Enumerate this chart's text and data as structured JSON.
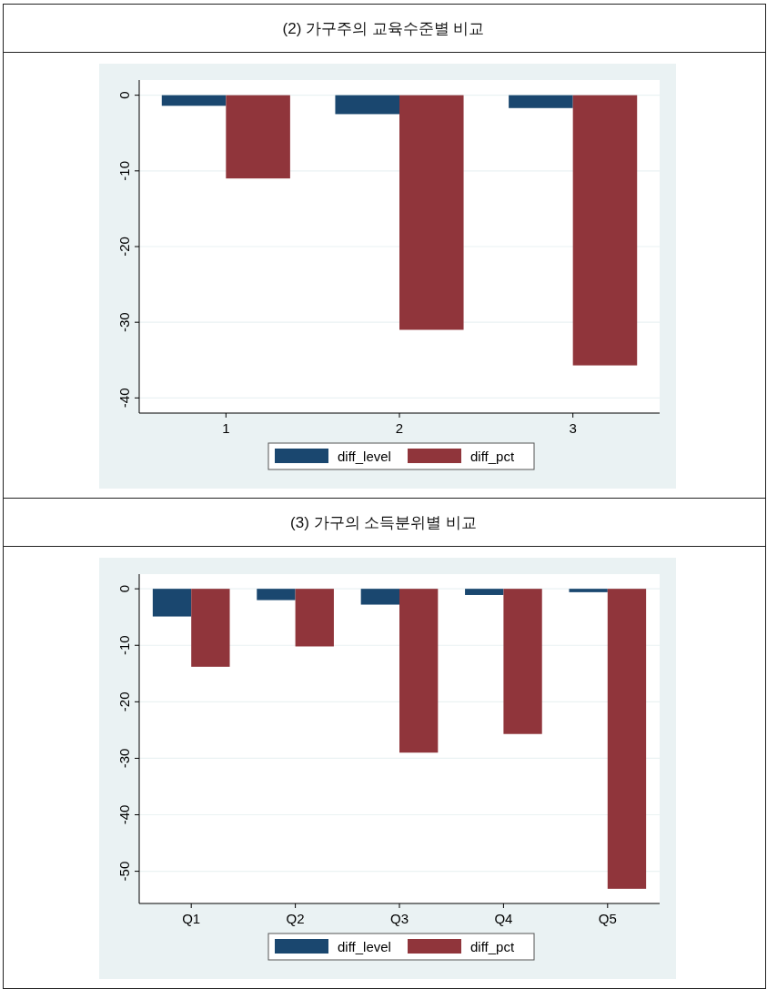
{
  "chart_data": [
    {
      "type": "bar",
      "title": "(2) 가구주의 교육수준별 비교",
      "categories": [
        "1",
        "2",
        "3"
      ],
      "series": [
        {
          "name": "diff_level",
          "color": "#1a476f",
          "values": [
            -1.4,
            -2.5,
            -1.7
          ]
        },
        {
          "name": "diff_pct",
          "color": "#90353b",
          "values": [
            -11.0,
            -31.0,
            -35.7
          ]
        }
      ],
      "ylim": [
        -42,
        2
      ],
      "yticks": [
        0,
        -10,
        -20,
        -30,
        -40
      ],
      "grid": "y",
      "legend": "bottom"
    },
    {
      "type": "bar",
      "title": "(3) 가구의 소득분위별 비교",
      "categories": [
        "Q1",
        "Q2",
        "Q3",
        "Q4",
        "Q5"
      ],
      "series": [
        {
          "name": "diff_level",
          "color": "#1a476f",
          "values": [
            -4.9,
            -2.0,
            -2.8,
            -1.1,
            -0.6
          ]
        },
        {
          "name": "diff_pct",
          "color": "#90353b",
          "values": [
            -13.8,
            -10.2,
            -29.0,
            -25.7,
            -53.1
          ]
        }
      ],
      "ylim": [
        -55.7,
        2.6
      ],
      "yticks": [
        0,
        -10,
        -20,
        -30,
        -40,
        -50
      ],
      "grid": "y",
      "legend": "bottom"
    }
  ]
}
